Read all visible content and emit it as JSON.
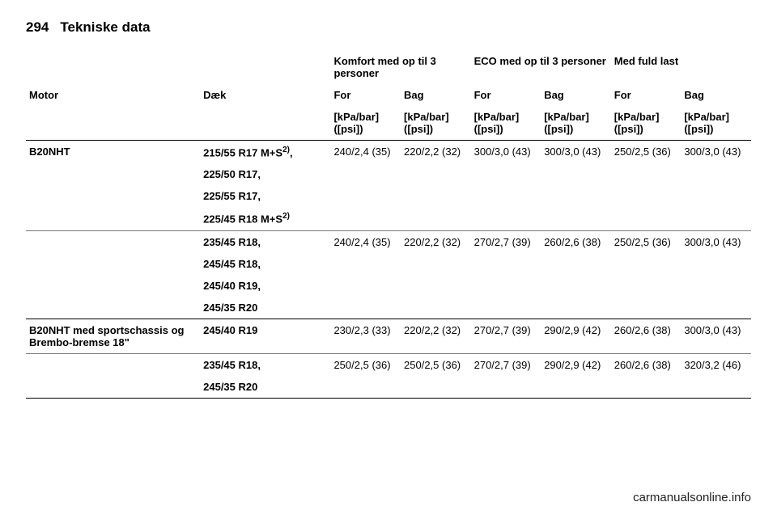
{
  "header": {
    "page_number": "294",
    "page_title": "Tekniske data"
  },
  "column_groups": {
    "komfort": "Komfort med op til 3 personer",
    "eco": "ECO med op til 3 personer",
    "fuld": "Med fuld last"
  },
  "sub_headers": {
    "motor": "Motor",
    "daek": "Dæk",
    "for": "For",
    "bag": "Bag",
    "unit": "[kPa/bar] ([psi])"
  },
  "rows": [
    {
      "motor": "B20NHT",
      "daek_groups": [
        {
          "daek_lines": [
            "215/55 R17 M+S",
            "225/50 R17,",
            "225/55 R17,",
            "225/45 R18 M+S"
          ],
          "daek_suffix_first": "2)",
          "daek_suffix_last": "2)",
          "vals": {
            "k_for": "240/2,4 (35)",
            "k_bag": "220/2,2 (32)",
            "e_for": "300/3,0 (43)",
            "e_bag": "300/3,0 (43)",
            "f_for": "250/2,5 (36)",
            "f_bag": "300/3,0 (43)"
          }
        },
        {
          "daek_lines": [
            "235/45 R18,",
            "245/45 R18,",
            "245/40 R19,",
            "245/35 R20"
          ],
          "vals": {
            "k_for": "240/2,4 (35)",
            "k_bag": "220/2,2 (32)",
            "e_for": "270/2,7 (39)",
            "e_bag": "260/2,6 (38)",
            "f_for": "250/2,5 (36)",
            "f_bag": "300/3,0 (43)"
          }
        }
      ]
    },
    {
      "motor": "B20NHT med sportschassis og Brembo-bremse 18\"",
      "daek_groups": [
        {
          "daek_lines": [
            "245/40 R19"
          ],
          "vals": {
            "k_for": "230/2,3 (33)",
            "k_bag": "220/2,2 (32)",
            "e_for": "270/2,7 (39)",
            "e_bag": "290/2,9 (42)",
            "f_for": "260/2,6 (38)",
            "f_bag": "300/3,0 (43)"
          }
        },
        {
          "daek_lines": [
            "235/45 R18,",
            "245/35 R20"
          ],
          "vals": {
            "k_for": "250/2,5 (36)",
            "k_bag": "250/2,5 (36)",
            "e_for": "270/2,7 (39)",
            "e_bag": "290/2,9 (42)",
            "f_for": "260/2,6 (38)",
            "f_bag": "320/3,2 (46)"
          }
        }
      ]
    }
  ],
  "watermark": "carmanualsonline.info"
}
